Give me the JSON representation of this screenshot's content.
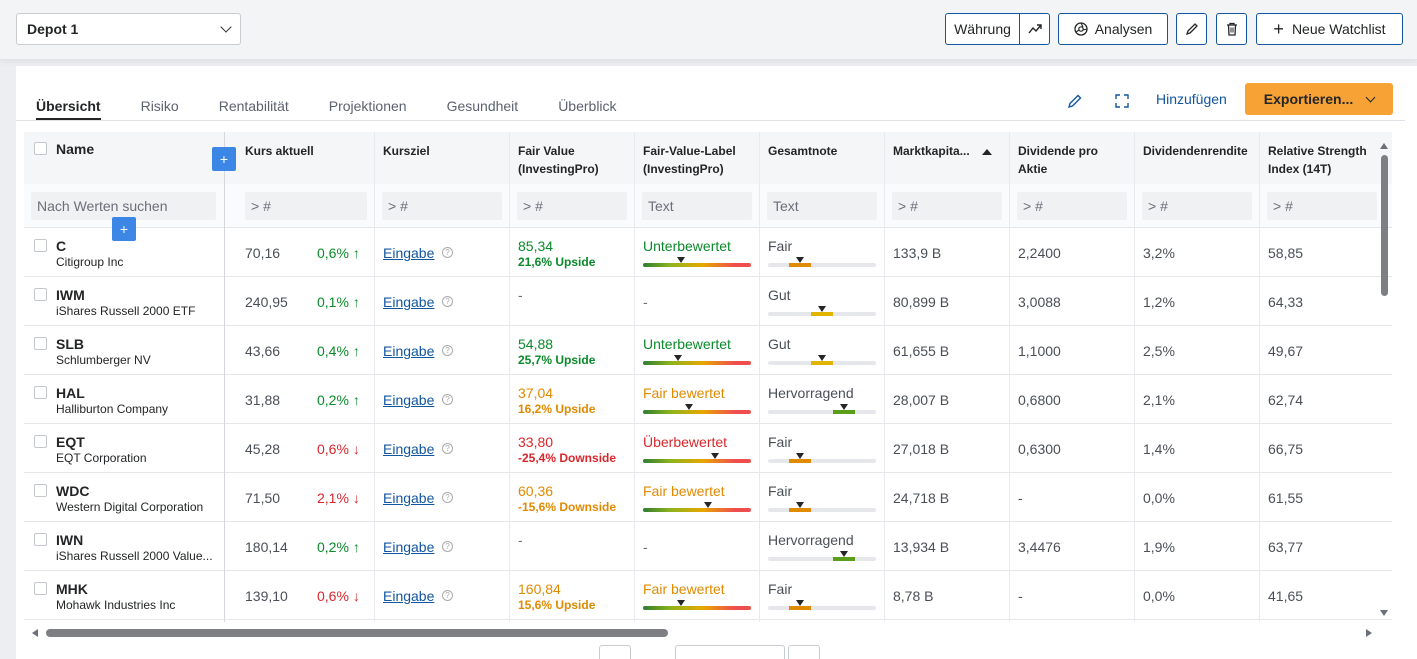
{
  "header": {
    "depot_label": "Depot 1",
    "currency_label": "Währung",
    "analyses_label": "Analysen",
    "new_watchlist_label": "Neue Watchlist"
  },
  "tabs": [
    {
      "label": "Übersicht",
      "active": true
    },
    {
      "label": "Risiko",
      "active": false
    },
    {
      "label": "Rentabilität",
      "active": false
    },
    {
      "label": "Projektionen",
      "active": false
    },
    {
      "label": "Gesundheit",
      "active": false
    },
    {
      "label": "Überblick",
      "active": false
    }
  ],
  "toolbar": {
    "add_label": "Hinzufügen",
    "export_label": "Exportieren..."
  },
  "columns": {
    "name": "Name",
    "price": "Kurs aktuell",
    "target": "Kursziel",
    "fair_value_1": "Fair Value",
    "fair_value_2": "(InvestingPro)",
    "fv_label_1": "Fair-Value-Label",
    "fv_label_2": "(InvestingPro)",
    "rating": "Gesamtnote",
    "marketcap": "Marktkapita...",
    "dividend_1": "Dividende pro",
    "dividend_2": "Aktie",
    "yield": "Dividendenrendite",
    "rsi_1": "Relative Strength",
    "rsi_2": "Index (14T)"
  },
  "filters": {
    "search_placeholder": "Nach Werten suchen",
    "num": "> #",
    "text": "Text"
  },
  "rows": [
    {
      "symbol": "C",
      "name": "Citigroup Inc",
      "price": "70,16",
      "change": "0,6%",
      "dir": "up",
      "target": "Eingabe",
      "fv": "85,34",
      "fv_sub": "21,6% Upside",
      "fv_color": "#0a8a2a",
      "label": "Unterbewertet",
      "label_color": "#0a8a2a",
      "label_marker": 0.35,
      "rating": "Fair",
      "rating_level": 0.3,
      "rating_color": "#e08a00",
      "mcap": "133,9 B",
      "div": "2,2400",
      "yield": "3,2%",
      "rsi": "58,85"
    },
    {
      "symbol": "IWM",
      "name": "iShares Russell 2000 ETF",
      "price": "240,95",
      "change": "0,1%",
      "dir": "up",
      "target": "Eingabe",
      "fv": "-",
      "fv_sub": "",
      "fv_color": "#6a6f78",
      "label": "-",
      "label_color": "#6a6f78",
      "label_marker": null,
      "rating": "Gut",
      "rating_level": 0.5,
      "rating_color": "#e0b400",
      "mcap": "80,899 B",
      "div": "3,0088",
      "yield": "1,2%",
      "rsi": "64,33"
    },
    {
      "symbol": "SLB",
      "name": "Schlumberger NV",
      "price": "43,66",
      "change": "0,4%",
      "dir": "up",
      "target": "Eingabe",
      "fv": "54,88",
      "fv_sub": "25,7% Upside",
      "fv_color": "#0a8a2a",
      "label": "Unterbewertet",
      "label_color": "#0a8a2a",
      "label_marker": 0.32,
      "rating": "Gut",
      "rating_level": 0.5,
      "rating_color": "#e0b400",
      "mcap": "61,655 B",
      "div": "1,1000",
      "yield": "2,5%",
      "rsi": "49,67"
    },
    {
      "symbol": "HAL",
      "name": "Halliburton Company",
      "price": "31,88",
      "change": "0,2%",
      "dir": "up",
      "target": "Eingabe",
      "fv": "37,04",
      "fv_sub": "16,2% Upside",
      "fv_color": "#e08a00",
      "label": "Fair bewertet",
      "label_color": "#e08a00",
      "label_marker": 0.43,
      "rating": "Hervorragend",
      "rating_level": 0.7,
      "rating_color": "#5a9e1a",
      "mcap": "28,007 B",
      "div": "0,6800",
      "yield": "2,1%",
      "rsi": "62,74"
    },
    {
      "symbol": "EQT",
      "name": "EQT Corporation",
      "price": "45,28",
      "change": "0,6%",
      "dir": "down",
      "target": "Eingabe",
      "fv": "33,80",
      "fv_sub": "-25,4% Downside",
      "fv_color": "#d8262c",
      "label": "Überbewertet",
      "label_color": "#d8262c",
      "label_marker": 0.67,
      "rating": "Fair",
      "rating_level": 0.3,
      "rating_color": "#e08a00",
      "mcap": "27,018 B",
      "div": "0,6300",
      "yield": "1,4%",
      "rsi": "66,75"
    },
    {
      "symbol": "WDC",
      "name": "Western Digital Corporation",
      "price": "71,50",
      "change": "2,1%",
      "dir": "down",
      "target": "Eingabe",
      "fv": "60,36",
      "fv_sub": "-15,6% Downside",
      "fv_color": "#e08a00",
      "label": "Fair bewertet",
      "label_color": "#e08a00",
      "label_marker": 0.6,
      "rating": "Fair",
      "rating_level": 0.3,
      "rating_color": "#e08a00",
      "mcap": "24,718 B",
      "div": "-",
      "yield": "0,0%",
      "rsi": "61,55"
    },
    {
      "symbol": "IWN",
      "name": "iShares Russell 2000 Value...",
      "price": "180,14",
      "change": "0,2%",
      "dir": "up",
      "target": "Eingabe",
      "fv": "-",
      "fv_sub": "",
      "fv_color": "#6a6f78",
      "label": "-",
      "label_color": "#6a6f78",
      "label_marker": null,
      "rating": "Hervorragend",
      "rating_level": 0.7,
      "rating_color": "#5a9e1a",
      "mcap": "13,934 B",
      "div": "3,4476",
      "yield": "1,9%",
      "rsi": "63,77"
    },
    {
      "symbol": "MHK",
      "name": "Mohawk Industries Inc",
      "price": "139,10",
      "change": "0,6%",
      "dir": "down",
      "target": "Eingabe",
      "fv": "160,84",
      "fv_sub": "15,6% Upside",
      "fv_color": "#e08a00",
      "label": "Fair bewertet",
      "label_color": "#e08a00",
      "label_marker": 0.35,
      "rating": "Fair",
      "rating_level": 0.3,
      "rating_color": "#e08a00",
      "mcap": "8,78 B",
      "div": "-",
      "yield": "0,0%",
      "rsi": "41,65"
    }
  ]
}
